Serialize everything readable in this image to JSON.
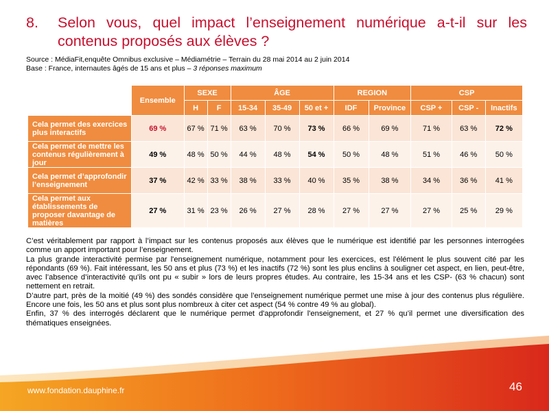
{
  "title": {
    "number": "8.",
    "line1": "Selon vous, quel impact l’enseignement numérique a-t-il sur les",
    "line2": "contenus proposés aux élèves ?"
  },
  "source": {
    "line1": "Source : MédiaFit,enquête Omnibus exclusive – Médiamétrie – Terrain du 28 mai 2014 au 2 juin 2014",
    "line2_prefix": "Base : France, internautes âgés de 15 ans et plus – ",
    "line2_italic": "3 réponses maximum"
  },
  "table": {
    "ensemble_label": "Ensemble",
    "groups": [
      "SEXE",
      "ÂGE",
      "REGION",
      "CSP"
    ],
    "subheaders": [
      "H",
      "F",
      "15-34",
      "35-49",
      "50 et +",
      "IDF",
      "Province",
      "CSP +",
      "CSP -",
      "Inactifs"
    ],
    "rows": [
      {
        "label": "Cela permet des exercices plus interactifs",
        "ensemble": "69 %",
        "values": [
          "67 %",
          "71 %",
          "63 %",
          "70 %",
          "73 %",
          "66 %",
          "69 %",
          "71 %",
          "63 %",
          "72 %"
        ]
      },
      {
        "label": "Cela permet de mettre les contenus régulièrement à jour",
        "ensemble": "49 %",
        "values": [
          "48 %",
          "50 %",
          "44 %",
          "48 %",
          "54 %",
          "50 %",
          "48 %",
          "51 %",
          "46 %",
          "50 %"
        ]
      },
      {
        "label": "Cela permet d’approfondir l’enseignement",
        "ensemble": "37 %",
        "values": [
          "42 %",
          "33 %",
          "38 %",
          "33 %",
          "40 %",
          "35 %",
          "38 %",
          "34 %",
          "36 %",
          "41 %"
        ]
      },
      {
        "label": "Cela permet aux établissements de proposer davantage de matières",
        "ensemble": "27 %",
        "values": [
          "31 %",
          "23 %",
          "26 %",
          "27 %",
          "28 %",
          "27 %",
          "27 %",
          "27 %",
          "25 %",
          "29 %"
        ]
      }
    ]
  },
  "body": {
    "p1": "C’est véritablement par rapport à l’impact sur les contenus proposés aux élèves que le numérique est identifié par les personnes interrogées comme un apport important pour l’enseignement.",
    "p2": "La plus grande interactivité permise par l'enseignement numérique, notamment pour les exercices, est l'élément le plus souvent cité par les répondants (69 %). Fait intéressant, les 50 ans et plus (73 %) et les inactifs (72 %) sont les plus enclins à souligner cet aspect, en lien, peut-être, avec l’absence d’interactivité qu'ils ont pu « subir » lors de leurs propres études. Au contraire, les 15-34 ans et les CSP- (63 % chacun) sont nettement en retrait.",
    "p3": "D’autre part, près de la moitié (49 %) des sondés considère que l’enseignement numérique permet une mise à jour des contenus plus régulière. Encore une fois, les 50 ans et plus sont plus nombreux à citer cet aspect (54 % contre 49 % au global).",
    "p4": "Enfin, 37 % des interrogés déclarent que le numérique permet d'approfondir l'enseignement, et 27 % qu’il permet une diversification des thématiques enseignées."
  },
  "footer": {
    "url": "www.fondation.dauphine.fr",
    "page_number": "46"
  },
  "colors": {
    "title_red": "#c8102e",
    "header_orange": "#f08c3f",
    "cell_light": "#fbe5d6"
  }
}
